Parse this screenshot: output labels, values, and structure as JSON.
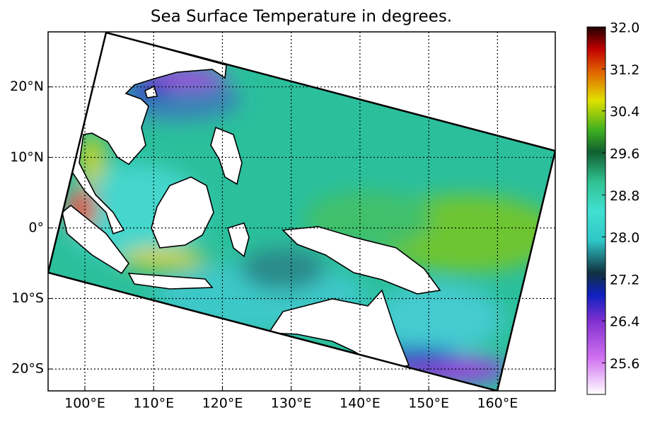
{
  "chart_data": {
    "type": "map",
    "title": "Sea Surface Temperature in degrees.",
    "xlim": [
      94.65,
      168.4
    ],
    "ylim": [
      -23.1,
      27.8
    ],
    "xticks": [
      {
        "value": 100,
        "label": "100°E"
      },
      {
        "value": 110,
        "label": "110°E"
      },
      {
        "value": 120,
        "label": "120°E"
      },
      {
        "value": 130,
        "label": "130°E"
      },
      {
        "value": 140,
        "label": "140°E"
      },
      {
        "value": 150,
        "label": "150°E"
      },
      {
        "value": 160,
        "label": "160°E"
      }
    ],
    "yticks": [
      {
        "value": -20,
        "label": "20°S"
      },
      {
        "value": -10,
        "label": "10°S"
      },
      {
        "value": 0,
        "label": "0°"
      },
      {
        "value": 10,
        "label": "10°N"
      },
      {
        "value": 20,
        "label": "20°N"
      }
    ],
    "grid": true,
    "clim": [
      25.0,
      32.0
    ],
    "cticks": [
      25.6,
      26.4,
      27.2,
      {
        "value": 28,
        "label": "28.0"
      },
      28.8,
      29.6,
      30.4,
      31.2,
      {
        "value": 32,
        "label": "32.0"
      }
    ]
  }
}
